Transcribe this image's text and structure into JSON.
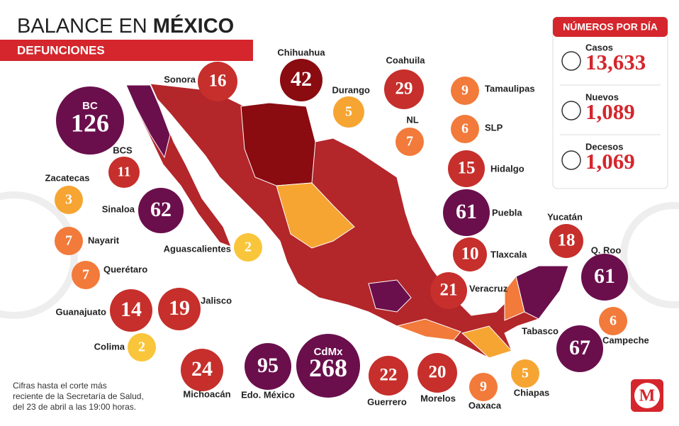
{
  "header": {
    "title_prefix": "BALANCE EN",
    "title_emphasis": "MÉXICO",
    "subtitle": "DEFUNCIONES"
  },
  "stats": {
    "title": "NÚMEROS POR DÍA",
    "items": [
      {
        "label": "Casos",
        "value": "13,633"
      },
      {
        "label": "Nuevos",
        "value": "1,089"
      },
      {
        "label": "Decesos",
        "value": "1,069"
      }
    ]
  },
  "states": [
    {
      "name": "BC",
      "value": 126,
      "color": "#6a0f4c"
    },
    {
      "name": "Sonora",
      "value": 16,
      "color": "#c62f2b"
    },
    {
      "name": "Chihuahua",
      "value": 42,
      "color": "#8a0b10"
    },
    {
      "name": "Durango",
      "value": 5,
      "color": "#f6a532"
    },
    {
      "name": "Coahuila",
      "value": 29,
      "color": "#c62f2b"
    },
    {
      "name": "Tamaulipas",
      "value": 9,
      "color": "#f27a3a"
    },
    {
      "name": "SLP",
      "value": 6,
      "color": "#f27a3a"
    },
    {
      "name": "NL",
      "value": 7,
      "color": "#f27a3a"
    },
    {
      "name": "Hidalgo",
      "value": 15,
      "color": "#c62f2b"
    },
    {
      "name": "BCS",
      "value": 11,
      "color": "#c62f2b"
    },
    {
      "name": "Zacatecas",
      "value": 3,
      "color": "#f6a532"
    },
    {
      "name": "Sinaloa",
      "value": 62,
      "color": "#6a0f4c"
    },
    {
      "name": "Puebla",
      "value": 61,
      "color": "#6a0f4c"
    },
    {
      "name": "Yucatán",
      "value": 18,
      "color": "#c62f2b"
    },
    {
      "name": "Nayarit",
      "value": 7,
      "color": "#f27a3a"
    },
    {
      "name": "Aguascalientes",
      "value": 2,
      "color": "#f9c53a"
    },
    {
      "name": "Tlaxcala",
      "value": 10,
      "color": "#c62f2b"
    },
    {
      "name": "Q. Roo",
      "value": 61,
      "color": "#6a0f4c"
    },
    {
      "name": "Querétaro",
      "value": 7,
      "color": "#f27a3a"
    },
    {
      "name": "Veracruz",
      "value": 21,
      "color": "#c62f2b"
    },
    {
      "name": "Guanajuato",
      "value": 14,
      "color": "#c62f2b"
    },
    {
      "name": "Jalisco",
      "value": 19,
      "color": "#c62f2b"
    },
    {
      "name": "Campeche",
      "value": 6,
      "color": "#f27a3a"
    },
    {
      "name": "Tabasco",
      "value": 67,
      "color": "#6a0f4c"
    },
    {
      "name": "Colima",
      "value": 2,
      "color": "#f9c53a"
    },
    {
      "name": "CdMx",
      "value": 268,
      "color": "#6a0f4c"
    },
    {
      "name": "Edo. México",
      "value": 95,
      "color": "#6a0f4c"
    },
    {
      "name": "Michoacán",
      "value": 24,
      "color": "#c62f2b"
    },
    {
      "name": "Guerrero",
      "value": 22,
      "color": "#c62f2b"
    },
    {
      "name": "Morelos",
      "value": 20,
      "color": "#c62f2b"
    },
    {
      "name": "Oaxaca",
      "value": 9,
      "color": "#f27a3a"
    },
    {
      "name": "Chiapas",
      "value": 5,
      "color": "#f6a532"
    }
  ],
  "footnote": [
    "Cifras hasta el corte más",
    "reciente de la Secretaría de Salud,",
    "del 23 de abril a las 19:00 horas."
  ],
  "logo": "M"
}
